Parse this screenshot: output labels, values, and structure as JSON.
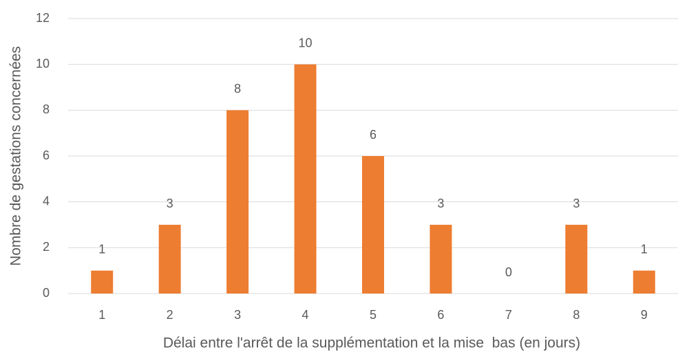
{
  "chart_data": {
    "type": "bar",
    "x_label": "Délai entre l'arrêt de la supplémentation et la mise  bas (en jours)",
    "y_label": "Nombre de gestations concernées",
    "categories": [
      "1",
      "2",
      "3",
      "4",
      "5",
      "6",
      "7",
      "8",
      "9"
    ],
    "values": [
      1,
      3,
      8,
      10,
      6,
      3,
      0,
      3,
      1
    ],
    "color": "#ed7d31",
    "ylim": [
      0,
      12
    ],
    "yticks": [
      0,
      2,
      4,
      6,
      8,
      10,
      12
    ],
    "grid": true,
    "data_labels": true
  }
}
